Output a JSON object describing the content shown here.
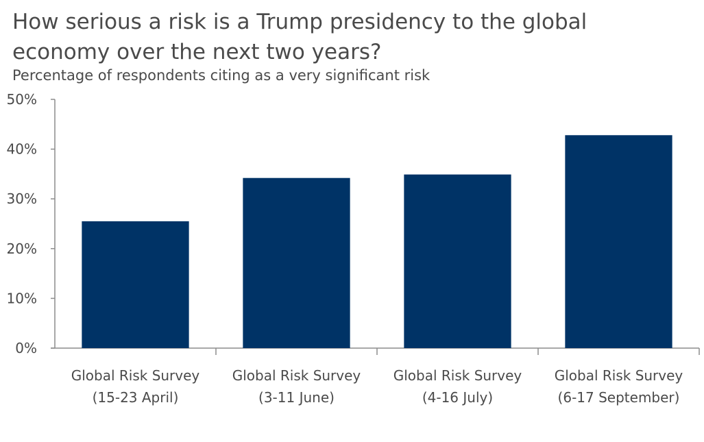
{
  "chart_data": {
    "type": "bar",
    "title": "How serious a risk is a Trump  presidency to the global economy over the next two years?",
    "subtitle": "Percentage of respondents citing as a very significant risk",
    "categories": [
      [
        "Global Risk Survey",
        "(15-23 April)"
      ],
      [
        "Global Risk Survey",
        "(3-11 June)"
      ],
      [
        "Global Risk Survey",
        "(4-16 July)"
      ],
      [
        "Global Risk Survey",
        "(6-17 September)"
      ]
    ],
    "values": [
      25.5,
      34.2,
      34.9,
      42.8
    ],
    "ylim": [
      0,
      50
    ],
    "yticks": [
      "0%",
      "10%",
      "20%",
      "30%",
      "40%",
      "50%"
    ],
    "grid": false,
    "legend": "none",
    "bar_color": "#003366"
  }
}
